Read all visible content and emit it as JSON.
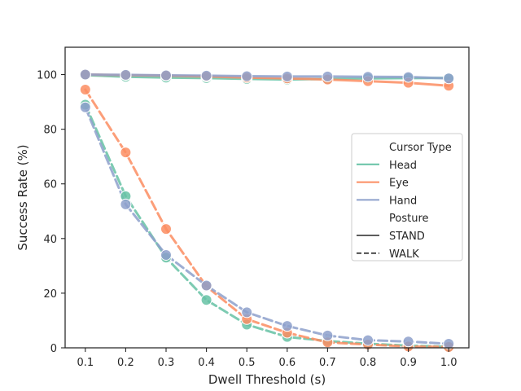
{
  "chart_data": {
    "type": "line",
    "xlabel": "Dwell Threshold (s)",
    "ylabel": "Success Rate (%)",
    "xlim": [
      0.05,
      1.05
    ],
    "ylim": [
      0,
      110
    ],
    "x": [
      0.1,
      0.2,
      0.3,
      0.4,
      0.5,
      0.6,
      0.7,
      0.8,
      0.9,
      1.0
    ],
    "x_tick_labels": [
      "0.1",
      "0.2",
      "0.3",
      "0.4",
      "0.5",
      "0.6",
      "0.7",
      "0.8",
      "0.9",
      "1.0"
    ],
    "y_ticks": [
      0,
      20,
      40,
      60,
      80,
      100
    ],
    "y_tick_labels": [
      "0",
      "20",
      "40",
      "60",
      "80",
      "100"
    ],
    "grid": false,
    "legend_position": "center-right",
    "legend_entries": {
      "hue_title": "Cursor Type",
      "hue_items": [
        {
          "label": "Head",
          "color": "#66c2a5"
        },
        {
          "label": "Eye",
          "color": "#fc8d62"
        },
        {
          "label": "Hand",
          "color": "#8da0cb"
        }
      ],
      "style_title": "Posture",
      "style_items": [
        {
          "label": "STAND",
          "dash": "solid"
        },
        {
          "label": "WALK",
          "dash": "dashed"
        }
      ]
    },
    "series": [
      {
        "name": "Head",
        "posture": "STAND",
        "color": "#66c2a5",
        "dash": "solid",
        "values": [
          99.8,
          99.2,
          98.9,
          98.7,
          98.4,
          98.2,
          98.4,
          98.6,
          98.7,
          98.8
        ]
      },
      {
        "name": "Eye",
        "posture": "STAND",
        "color": "#fc8d62",
        "dash": "solid",
        "values": [
          100,
          99.8,
          99.6,
          99.3,
          98.9,
          98.6,
          98.2,
          97.6,
          97.0,
          95.9
        ]
      },
      {
        "name": "Hand",
        "posture": "STAND",
        "color": "#8da0cb",
        "dash": "solid",
        "values": [
          100,
          99.9,
          99.7,
          99.6,
          99.4,
          99.3,
          99.3,
          99.2,
          99.1,
          98.6
        ]
      },
      {
        "name": "Head",
        "posture": "WALK",
        "color": "#66c2a5",
        "dash": "dashed",
        "values": [
          89.0,
          55.5,
          33.0,
          17.5,
          8.5,
          4.0,
          2.5,
          1.5,
          0.8,
          0.4
        ]
      },
      {
        "name": "Eye",
        "posture": "WALK",
        "color": "#fc8d62",
        "dash": "dashed",
        "values": [
          94.5,
          71.5,
          43.5,
          22.5,
          10.5,
          5.5,
          2.0,
          1.2,
          0.5,
          0.3
        ]
      },
      {
        "name": "Hand",
        "posture": "WALK",
        "color": "#8da0cb",
        "dash": "dashed",
        "values": [
          88.0,
          52.5,
          34.0,
          22.8,
          13.0,
          8.0,
          4.5,
          2.8,
          2.3,
          1.5
        ]
      }
    ]
  }
}
